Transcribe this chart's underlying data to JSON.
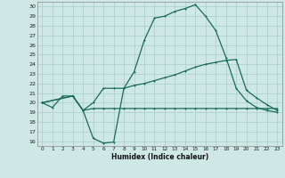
{
  "xlabel": "Humidex (Indice chaleur)",
  "xlim": [
    -0.5,
    23.5
  ],
  "ylim": [
    15.5,
    30.5
  ],
  "xticks": [
    0,
    1,
    2,
    3,
    4,
    5,
    6,
    7,
    8,
    9,
    10,
    11,
    12,
    13,
    14,
    15,
    16,
    17,
    18,
    19,
    20,
    21,
    22,
    23
  ],
  "yticks": [
    16,
    17,
    18,
    19,
    20,
    21,
    22,
    23,
    24,
    25,
    26,
    27,
    28,
    29,
    30
  ],
  "bg_color": "#cde8e5",
  "line_color": "#1a6b5a",
  "grid_color": "#a8ceca",
  "line1_x": [
    0,
    1,
    2,
    3,
    4,
    5,
    6,
    7,
    8,
    9,
    10,
    11,
    12,
    13,
    14,
    15,
    16,
    17,
    18,
    19,
    20,
    21,
    22,
    23
  ],
  "line1_y": [
    20,
    19.5,
    20.7,
    20.7,
    19.2,
    16.3,
    15.8,
    15.9,
    21.5,
    23.2,
    26.5,
    28.8,
    29.0,
    29.5,
    29.8,
    30.2,
    29.0,
    27.5,
    24.7,
    21.5,
    20.2,
    19.5,
    19.2,
    19.0
  ],
  "line2_x": [
    0,
    3,
    4,
    5,
    6,
    7,
    8,
    9,
    10,
    11,
    12,
    13,
    14,
    15,
    16,
    17,
    18,
    19,
    20,
    21,
    22,
    23
  ],
  "line2_y": [
    20,
    20.7,
    19.2,
    20.0,
    21.5,
    21.5,
    21.5,
    21.8,
    22.0,
    22.3,
    22.6,
    22.9,
    23.3,
    23.7,
    24.0,
    24.2,
    24.4,
    24.5,
    21.3,
    20.5,
    19.8,
    19.2
  ],
  "line3_x": [
    0,
    3,
    4,
    5,
    6,
    7,
    8,
    9,
    10,
    11,
    12,
    13,
    14,
    15,
    16,
    17,
    18,
    19,
    20,
    21,
    22,
    23
  ],
  "line3_y": [
    20,
    20.7,
    19.2,
    19.4,
    19.4,
    19.4,
    19.4,
    19.4,
    19.4,
    19.4,
    19.4,
    19.4,
    19.4,
    19.4,
    19.4,
    19.4,
    19.4,
    19.4,
    19.4,
    19.4,
    19.4,
    19.4
  ]
}
